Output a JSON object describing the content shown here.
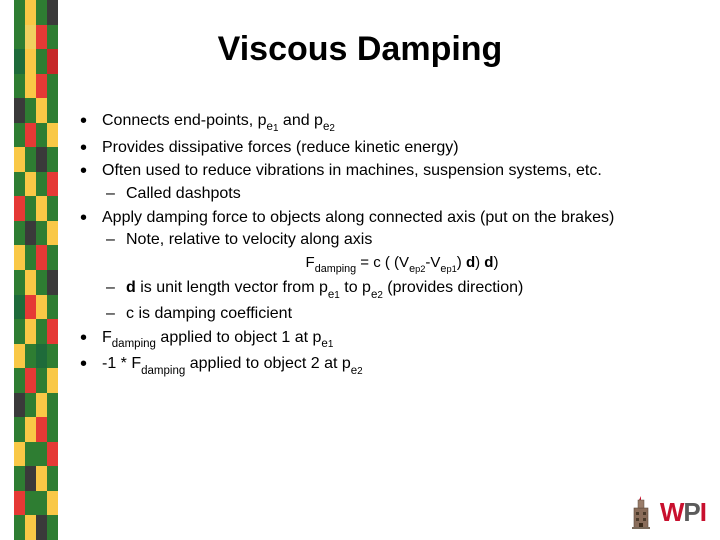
{
  "title": "Viscous Damping",
  "stripe": {
    "columns": 4,
    "rows": 22,
    "palette": [
      "#2e7d32",
      "#f9c846",
      "#e53935",
      "#1e6b3a",
      "#3a3a3a",
      "#f0d060",
      "#2a2a2a",
      "#c62828"
    ],
    "pattern": [
      [
        0,
        1,
        0,
        4
      ],
      [
        0,
        5,
        2,
        0
      ],
      [
        3,
        1,
        0,
        7
      ],
      [
        0,
        1,
        2,
        0
      ],
      [
        4,
        0,
        1,
        0
      ],
      [
        0,
        2,
        0,
        1
      ],
      [
        1,
        0,
        4,
        0
      ],
      [
        0,
        1,
        0,
        2
      ],
      [
        2,
        0,
        1,
        0
      ],
      [
        0,
        4,
        0,
        1
      ],
      [
        1,
        0,
        2,
        0
      ],
      [
        0,
        1,
        0,
        4
      ],
      [
        3,
        2,
        1,
        0
      ],
      [
        0,
        1,
        0,
        2
      ],
      [
        1,
        0,
        3,
        0
      ],
      [
        0,
        2,
        0,
        1
      ],
      [
        4,
        0,
        1,
        0
      ],
      [
        0,
        1,
        2,
        0
      ],
      [
        1,
        0,
        0,
        2
      ],
      [
        0,
        4,
        1,
        0
      ],
      [
        2,
        0,
        0,
        1
      ],
      [
        0,
        1,
        4,
        0
      ]
    ]
  },
  "bullets": [
    {
      "segments": [
        {
          "t": "Connects end-points, p"
        },
        {
          "t": "e",
          "cls": "sub"
        },
        {
          "t": "1",
          "cls": "ssub"
        },
        {
          "t": " and p"
        },
        {
          "t": "e",
          "cls": "sub"
        },
        {
          "t": "2",
          "cls": "ssub"
        }
      ]
    },
    {
      "segments": [
        {
          "t": "Provides dissipative forces (reduce kinetic energy)"
        }
      ]
    },
    {
      "segments": [
        {
          "t": "Often used to reduce vibrations in machines, suspension systems, etc."
        }
      ],
      "subs": [
        {
          "segments": [
            {
              "t": "Called dashpots"
            }
          ]
        }
      ]
    },
    {
      "segments": [
        {
          "t": "Apply damping force to objects along connected axis (put on the brakes)"
        }
      ],
      "subs": [
        {
          "segments": [
            {
              "t": "Note, relative to velocity along axis"
            }
          ],
          "formula": [
            {
              "t": "F"
            },
            {
              "t": "damping",
              "cls": "sub"
            },
            {
              "t": " = c ( (V"
            },
            {
              "t": "e",
              "cls": "sub"
            },
            {
              "t": "p",
              "cls": "ssub"
            },
            {
              "t": "2",
              "cls": "ssub"
            },
            {
              "t": "-V"
            },
            {
              "t": "e",
              "cls": "sub"
            },
            {
              "t": "p",
              "cls": "ssub"
            },
            {
              "t": "1",
              "cls": "ssub"
            },
            {
              "t": ") "
            },
            {
              "t": "d",
              "cls": "bold"
            },
            {
              "t": ") "
            },
            {
              "t": "d",
              "cls": "bold"
            },
            {
              "t": ")"
            }
          ]
        },
        {
          "segments": [
            {
              "t": "d",
              "cls": "bold"
            },
            {
              "t": " is unit length vector from p"
            },
            {
              "t": "e",
              "cls": "sub"
            },
            {
              "t": "1",
              "cls": "ssub"
            },
            {
              "t": " to p"
            },
            {
              "t": "e",
              "cls": "sub"
            },
            {
              "t": "2",
              "cls": "ssub"
            },
            {
              "t": " (provides direction)"
            }
          ]
        },
        {
          "segments": [
            {
              "t": "c is damping coefficient"
            }
          ]
        }
      ]
    },
    {
      "segments": [
        {
          "t": "F"
        },
        {
          "t": "damping",
          "cls": "sub"
        },
        {
          "t": " applied to object 1 at p"
        },
        {
          "t": "e",
          "cls": "sub"
        },
        {
          "t": "1",
          "cls": "ssub"
        }
      ]
    },
    {
      "segments": [
        {
          "t": "-1 * F"
        },
        {
          "t": "damping",
          "cls": "sub"
        },
        {
          "t": " applied to object 2 at p"
        },
        {
          "t": "e",
          "cls": "sub"
        },
        {
          "t": "2",
          "cls": "ssub"
        }
      ]
    }
  ],
  "logo": {
    "w": "W",
    "p": "P",
    "i": "I"
  },
  "colors": {
    "title": "#000000",
    "text": "#000000"
  }
}
